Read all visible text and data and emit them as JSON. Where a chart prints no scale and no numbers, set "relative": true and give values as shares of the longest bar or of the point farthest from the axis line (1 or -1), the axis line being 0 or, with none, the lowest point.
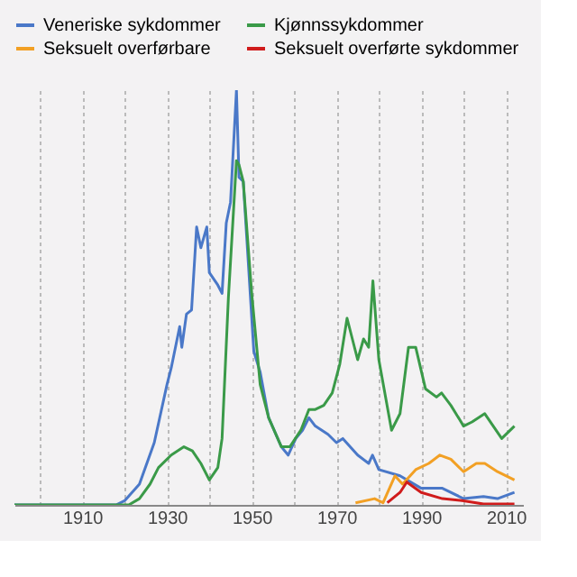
{
  "chart_data": {
    "type": "line",
    "relative": true,
    "xlim": [
      1894,
      2014
    ],
    "xticks": [
      {
        "value": 1900,
        "label": null
      },
      1910,
      {
        "value": 1920,
        "label": null
      },
      1930,
      {
        "value": 1940,
        "label": null
      },
      1950,
      {
        "value": 1960,
        "label": null
      },
      1970,
      {
        "value": 1980,
        "label": null
      },
      1990,
      {
        "value": 2000,
        "label": null
      },
      2010
    ],
    "grid": "x",
    "legend": "top",
    "line_style": "solid",
    "marker": "none",
    "series": [
      {
        "name": "Veneriske sykdommer",
        "color": "#4a78c8",
        "x": [
          1894,
          1918,
          1920,
          1923.5,
          1927,
          1930,
          1931,
          1932,
          1933,
          1933.5,
          1934.6,
          1935.8,
          1937,
          1938,
          1939.4,
          1940,
          1942,
          1943,
          1944,
          1945,
          1946.4,
          1947,
          1948,
          1950.5,
          1952,
          1954,
          1957,
          1958.6,
          1960.4,
          1962,
          1963.5,
          1965,
          1968,
          1970,
          1971.5,
          1975,
          1977.6,
          1978.5,
          1980,
          1985,
          1990,
          1995,
          2000,
          2004.7,
          2008,
          2012
        ],
        "values": [
          0,
          0,
          0.01,
          0.05,
          0.15,
          0.29,
          0.33,
          0.38,
          0.43,
          0.38,
          0.46,
          0.47,
          0.67,
          0.62,
          0.67,
          0.56,
          0.53,
          0.51,
          0.68,
          0.73,
          1.0,
          0.79,
          0.78,
          0.37,
          0.32,
          0.21,
          0.14,
          0.12,
          0.16,
          0.18,
          0.21,
          0.19,
          0.17,
          0.15,
          0.16,
          0.12,
          0.1,
          0.12,
          0.085,
          0.07,
          0.04,
          0.04,
          0.015,
          0.02,
          0.015,
          0.03
        ]
      },
      {
        "name": "Kjønnssykdommer",
        "color": "#3a9a48",
        "x": [
          1894,
          1921,
          1923.5,
          1926,
          1928,
          1931,
          1934,
          1936,
          1938,
          1940,
          1942,
          1943,
          1944.5,
          1946.4,
          1947,
          1948,
          1950,
          1952,
          1954,
          1957,
          1959,
          1961.6,
          1963.5,
          1965,
          1967,
          1969,
          1970.8,
          1972.5,
          1975,
          1976.4,
          1977.6,
          1978.6,
          1980,
          1983,
          1985,
          1987,
          1988.7,
          1991,
          1993.6,
          1994.8,
          1997,
          2000,
          2002,
          2005,
          2009,
          2012
        ],
        "values": [
          0,
          0,
          0.015,
          0.05,
          0.09,
          0.12,
          0.14,
          0.13,
          0.1,
          0.06,
          0.09,
          0.16,
          0.5,
          0.83,
          0.82,
          0.78,
          0.51,
          0.29,
          0.21,
          0.14,
          0.14,
          0.18,
          0.23,
          0.23,
          0.24,
          0.27,
          0.34,
          0.45,
          0.35,
          0.4,
          0.38,
          0.54,
          0.35,
          0.18,
          0.22,
          0.38,
          0.38,
          0.28,
          0.26,
          0.27,
          0.24,
          0.19,
          0.2,
          0.22,
          0.16,
          0.19
        ]
      },
      {
        "name": "Seksuelt overførbare",
        "color": "#f2a024",
        "x": [
          1974.5,
          1979,
          1981,
          1983.8,
          1985.6,
          1988.7,
          1991.8,
          1994.4,
          1997,
          2000,
          2003,
          2005,
          2008,
          2012
        ],
        "values": [
          0.005,
          0.015,
          0.005,
          0.07,
          0.05,
          0.085,
          0.1,
          0.12,
          0.11,
          0.08,
          0.1,
          0.1,
          0.08,
          0.06
        ]
      },
      {
        "name": "Seksuelt overførte sykdommer",
        "color": "#d01c1c",
        "x": [
          1982,
          1985,
          1986.6,
          1990,
          1995,
          2000,
          2004.7,
          2012
        ],
        "values": [
          0.005,
          0.03,
          0.055,
          0.03,
          0.015,
          0.01,
          0.002,
          0.002
        ]
      }
    ]
  }
}
